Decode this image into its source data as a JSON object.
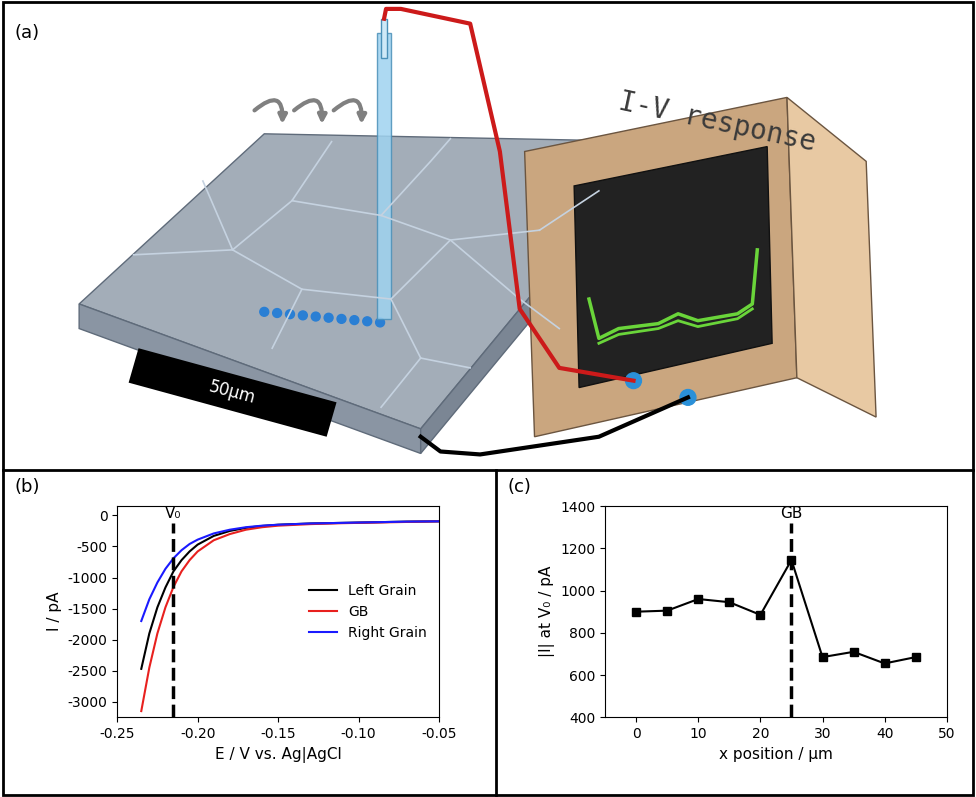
{
  "diagram": {
    "panel_label": "(a)",
    "scale_bar_label": "50µm",
    "instrument_label": "I-V response"
  },
  "chart_data": [
    {
      "type": "line",
      "panel_label": "(b)",
      "x_label": "E / V vs. Ag|AgCl",
      "y_label": "I / pA",
      "x": [
        -0.235,
        -0.23,
        -0.225,
        -0.22,
        -0.215,
        -0.21,
        -0.205,
        -0.2,
        -0.19,
        -0.18,
        -0.17,
        -0.16,
        -0.15,
        -0.13,
        -0.11,
        -0.09,
        -0.07,
        -0.05
      ],
      "series": [
        {
          "name": "Left Grain",
          "color": "#000000",
          "values": [
            -2470,
            -1900,
            -1480,
            -1160,
            -900,
            -720,
            -580,
            -470,
            -330,
            -250,
            -200,
            -170,
            -150,
            -130,
            -120,
            -110,
            -100,
            -95
          ]
        },
        {
          "name": "GB",
          "color": "#e8201e",
          "values": [
            -3150,
            -2450,
            -1900,
            -1480,
            -1150,
            -900,
            -720,
            -580,
            -400,
            -300,
            -230,
            -190,
            -165,
            -140,
            -125,
            -115,
            -105,
            -95
          ]
        },
        {
          "name": "Right Grain",
          "color": "#1a1aff",
          "values": [
            -1700,
            -1350,
            -1080,
            -860,
            -690,
            -560,
            -460,
            -390,
            -290,
            -230,
            -190,
            -165,
            -150,
            -130,
            -120,
            -110,
            -100,
            -95
          ]
        }
      ],
      "xlim": [
        -0.25,
        -0.05
      ],
      "xticks": [
        {
          "value": -0.25,
          "label": "-0.25"
        },
        {
          "value": -0.2,
          "label": "-0.20"
        },
        {
          "value": -0.15,
          "label": "-0.15"
        },
        {
          "value": -0.1,
          "label": "-0.10"
        },
        {
          "value": -0.05,
          "label": "-0.05"
        }
      ],
      "ylim": [
        -3250,
        150
      ],
      "yticks": [
        -3000,
        -2500,
        -2000,
        -1500,
        -1000,
        -500,
        0
      ],
      "legend": "center right",
      "annotations": [
        {
          "text": "V₀",
          "x": -0.215
        }
      ]
    },
    {
      "type": "line",
      "panel_label": "(c)",
      "x_label": "x position / µm",
      "y_label": "|I| at V₀ / pA",
      "x": [
        0,
        5,
        10,
        15,
        20,
        25,
        30,
        35,
        40,
        45
      ],
      "series": [
        {
          "color": "#000000",
          "marker": "s",
          "values": [
            900,
            905,
            960,
            945,
            885,
            1145,
            685,
            710,
            655,
            685
          ]
        }
      ],
      "xlim": [
        -5,
        50
      ],
      "xticks": [
        0,
        10,
        20,
        30,
        40,
        50
      ],
      "ylim": [
        400,
        1400
      ],
      "yticks": [
        400,
        600,
        800,
        1000,
        1200,
        1400
      ],
      "annotations": [
        {
          "text": "GB",
          "x": 25
        }
      ]
    }
  ]
}
